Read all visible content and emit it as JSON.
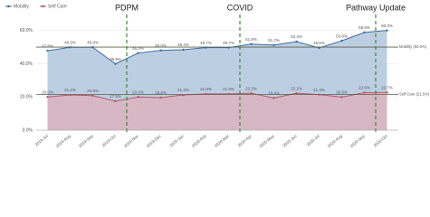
{
  "chart_data": {
    "type": "area",
    "categories": [
      "2019-Jul",
      "2019-Aug",
      "2019-Sep",
      "2019-Oct",
      "2019-Nov",
      "2019-Dec",
      "2020-Jan",
      "2020-Feb",
      "2020-Mar",
      "2020-Apr",
      "2020-May",
      "2020-Jun",
      "2020-Jul",
      "2020-Aug",
      "2020-Sep",
      "2020-Oct"
    ],
    "series": [
      {
        "name": "Mobility",
        "color": "#3d6e9e",
        "fill": "#bccfe2",
        "values": [
          47.8,
          49.9,
          49.9,
          39.9,
          46.4,
          48.0,
          48.4,
          49.7,
          49.7,
          51.8,
          51.2,
          53.3,
          49.5,
          53.8,
          58.8,
          60.0
        ],
        "value_labels": [
          "47.8%",
          "49.9%",
          "49.9%",
          "39.9%",
          "46.4%",
          "48.0%",
          "48.4%",
          "49.7%",
          "49.7%",
          "51.8%",
          "51.2%",
          "53.3%",
          "49.5%",
          "53.8%",
          "58.8%",
          "60.0%"
        ]
      },
      {
        "name": "Self Care",
        "color": "#b5566b",
        "fill": "#d8b7c4",
        "values": [
          20.0,
          21.2,
          20.8,
          17.5,
          20.0,
          19.6,
          21.2,
          21.8,
          21.8,
          22.2,
          19.4,
          22.2,
          21.4,
          19.9,
          22.6,
          22.7
        ],
        "value_labels": [
          "20.0%",
          "21.2%",
          "20.8%",
          "17.5%",
          "20.0%",
          "19.6%",
          "21.2%",
          "21.8%",
          "21.8%",
          "22.2%",
          "19.4%",
          "22.2%",
          "21.4%",
          "19.9%",
          "22.6%",
          "22.7%"
        ]
      }
    ],
    "ylim": [
      0,
      62
    ],
    "yticks": [
      {
        "value": 0,
        "label": "0.0%"
      },
      {
        "value": 20,
        "label": "20.0%"
      },
      {
        "value": 40,
        "label": "40.0%"
      },
      {
        "value": 60,
        "label": "60.0%"
      }
    ],
    "reference_lines": [
      {
        "label": "Mobility (50.0%)",
        "value": 50
      },
      {
        "label": "Self Care (21.5%)",
        "value": 21.5
      }
    ],
    "annotations": [
      {
        "label": "PDPM",
        "x": "2019-Oct"
      },
      {
        "label": "COVID",
        "x": "2020-Mar"
      },
      {
        "label": "Pathway Update",
        "x": "2020-Sep"
      }
    ],
    "legend": "top-left"
  }
}
